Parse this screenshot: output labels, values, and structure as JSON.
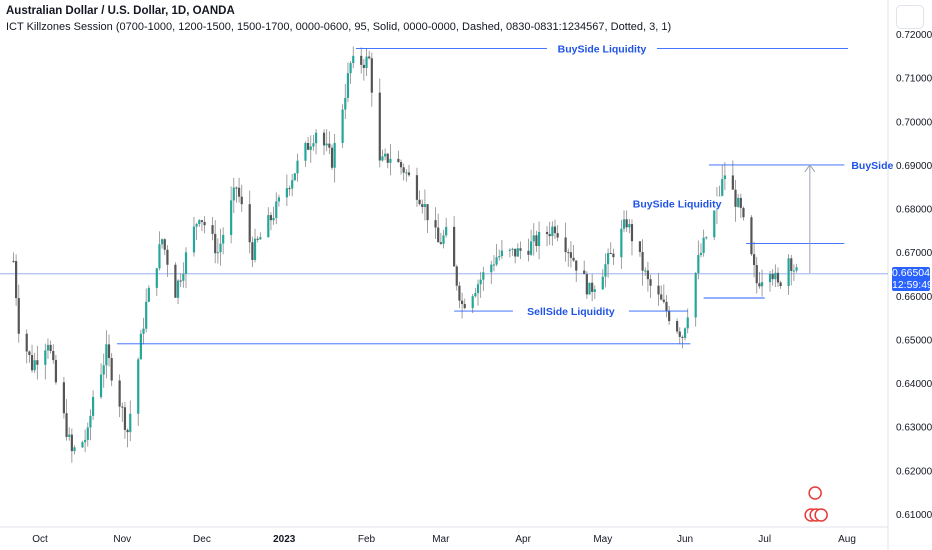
{
  "header": {
    "symbol_title": "Australian Dollar / U.S. Dollar, 1D, OANDA",
    "indicator_line": "ICT Killzones Session (0700-1000, 1200-1500, 1500-1700, 0000-0600, 95, Solid, 0000-0000, Dashed, 0830-0831:1234567, Dotted, 3, 1)"
  },
  "price_badge": {
    "price": "0.66504",
    "countdown": "12:59:49"
  },
  "colors": {
    "up": "#26a69a",
    "down": "#555555",
    "line": "#2962ff",
    "label": "#1e53e5",
    "axis_text": "#131722",
    "last_price_line": "#89a8ee"
  },
  "chart_data": {
    "type": "candlestick",
    "title": "Australian Dollar / U.S. Dollar, 1D, OANDA",
    "ylim": [
      0.605,
      0.7225
    ],
    "y_ticks": [
      "0.72000",
      "0.71000",
      "0.70000",
      "0.69000",
      "0.68000",
      "0.67000",
      "0.66000",
      "0.65000",
      "0.64000",
      "0.63000",
      "0.62000",
      "0.61000"
    ],
    "x_ticks": [
      {
        "label": "Oct",
        "date": "2022-10-01"
      },
      {
        "label": "Nov",
        "date": "2022-11-01"
      },
      {
        "label": "Dec",
        "date": "2022-12-01"
      },
      {
        "label": "2023",
        "date": "2023-01-01",
        "bold": true
      },
      {
        "label": "Feb",
        "date": "2023-02-01"
      },
      {
        "label": "Mar",
        "date": "2023-03-01"
      },
      {
        "label": "Apr",
        "date": "2023-04-01"
      },
      {
        "label": "May",
        "date": "2023-05-01"
      },
      {
        "label": "Jun",
        "date": "2023-06-01"
      },
      {
        "label": "Jul",
        "date": "2023-07-01"
      },
      {
        "label": "Aug",
        "date": "2023-08-01"
      }
    ],
    "last_price": 0.66504,
    "series": [
      {
        "date": "2022-09-21",
        "close": 0.668
      },
      {
        "date": "2022-09-23",
        "close": 0.653
      },
      {
        "date": "2022-09-28",
        "close": 0.644
      },
      {
        "date": "2022-10-04",
        "close": 0.65
      },
      {
        "date": "2022-10-07",
        "close": 0.64
      },
      {
        "date": "2022-10-13",
        "close": 0.624
      },
      {
        "date": "2022-10-19",
        "close": 0.628
      },
      {
        "date": "2022-10-21",
        "close": 0.637
      },
      {
        "date": "2022-10-26",
        "close": 0.647
      },
      {
        "date": "2022-11-03",
        "close": 0.629
      },
      {
        "date": "2022-11-10",
        "close": 0.658
      },
      {
        "date": "2022-11-16",
        "close": 0.673
      },
      {
        "date": "2022-11-21",
        "close": 0.661
      },
      {
        "date": "2022-11-30",
        "close": 0.679
      },
      {
        "date": "2022-12-07",
        "close": 0.67
      },
      {
        "date": "2022-12-14",
        "close": 0.685
      },
      {
        "date": "2022-12-20",
        "close": 0.67
      },
      {
        "date": "2022-12-29",
        "close": 0.68
      },
      {
        "date": "2023-01-06",
        "close": 0.69
      },
      {
        "date": "2023-01-13",
        "close": 0.698
      },
      {
        "date": "2023-01-19",
        "close": 0.691
      },
      {
        "date": "2023-01-26",
        "close": 0.713
      },
      {
        "date": "2023-02-02",
        "close": 0.714
      },
      {
        "date": "2023-02-06",
        "close": 0.69
      },
      {
        "date": "2023-02-10",
        "close": 0.692
      },
      {
        "date": "2023-02-15",
        "close": 0.689
      },
      {
        "date": "2023-02-22",
        "close": 0.682
      },
      {
        "date": "2023-02-28",
        "close": 0.672
      },
      {
        "date": "2023-03-03",
        "close": 0.674
      },
      {
        "date": "2023-03-09",
        "close": 0.658
      },
      {
        "date": "2023-03-15",
        "close": 0.663
      },
      {
        "date": "2023-03-22",
        "close": 0.669
      },
      {
        "date": "2023-03-30",
        "close": 0.67
      },
      {
        "date": "2023-04-05",
        "close": 0.672
      },
      {
        "date": "2023-04-13",
        "close": 0.676
      },
      {
        "date": "2023-04-18",
        "close": 0.671
      },
      {
        "date": "2023-04-26",
        "close": 0.661
      },
      {
        "date": "2023-05-04",
        "close": 0.669
      },
      {
        "date": "2023-05-10",
        "close": 0.677
      },
      {
        "date": "2023-05-18",
        "close": 0.663
      },
      {
        "date": "2023-05-31",
        "close": 0.651
      },
      {
        "date": "2023-06-06",
        "close": 0.668
      },
      {
        "date": "2023-06-12",
        "close": 0.679
      },
      {
        "date": "2023-06-16",
        "close": 0.688
      },
      {
        "date": "2023-06-22",
        "close": 0.679
      },
      {
        "date": "2023-06-28",
        "close": 0.663
      },
      {
        "date": "2023-07-03",
        "close": 0.667
      },
      {
        "date": "2023-07-06",
        "close": 0.662
      },
      {
        "date": "2023-07-10",
        "close": 0.669
      },
      {
        "date": "2023-07-13",
        "close": 0.66504
      }
    ],
    "annotations": [
      {
        "text": "BuySide Liquidity",
        "price": 0.7167,
        "from": "2023-01-28",
        "to": "2023-08-31"
      },
      {
        "text": "BuySide",
        "price": 0.69,
        "from": "2023-06-10",
        "to": "2023-07-31"
      },
      {
        "text": "BuySide Liquidity",
        "price": 0.6812,
        "from": "2023-05-11",
        "to": "2023-06-16"
      },
      {
        "text": "",
        "price": 0.672,
        "from": "2023-06-24",
        "to": "2023-07-31"
      },
      {
        "text": "",
        "price": 0.6595,
        "from": "2023-06-08",
        "to": "2023-07-01"
      },
      {
        "text": "SellSide Liquidity",
        "price": 0.6565,
        "from": "2023-03-06",
        "to": "2023-06-02"
      },
      {
        "text": "",
        "price": 0.649,
        "from": "2022-10-30",
        "to": "2023-06-03"
      }
    ]
  }
}
